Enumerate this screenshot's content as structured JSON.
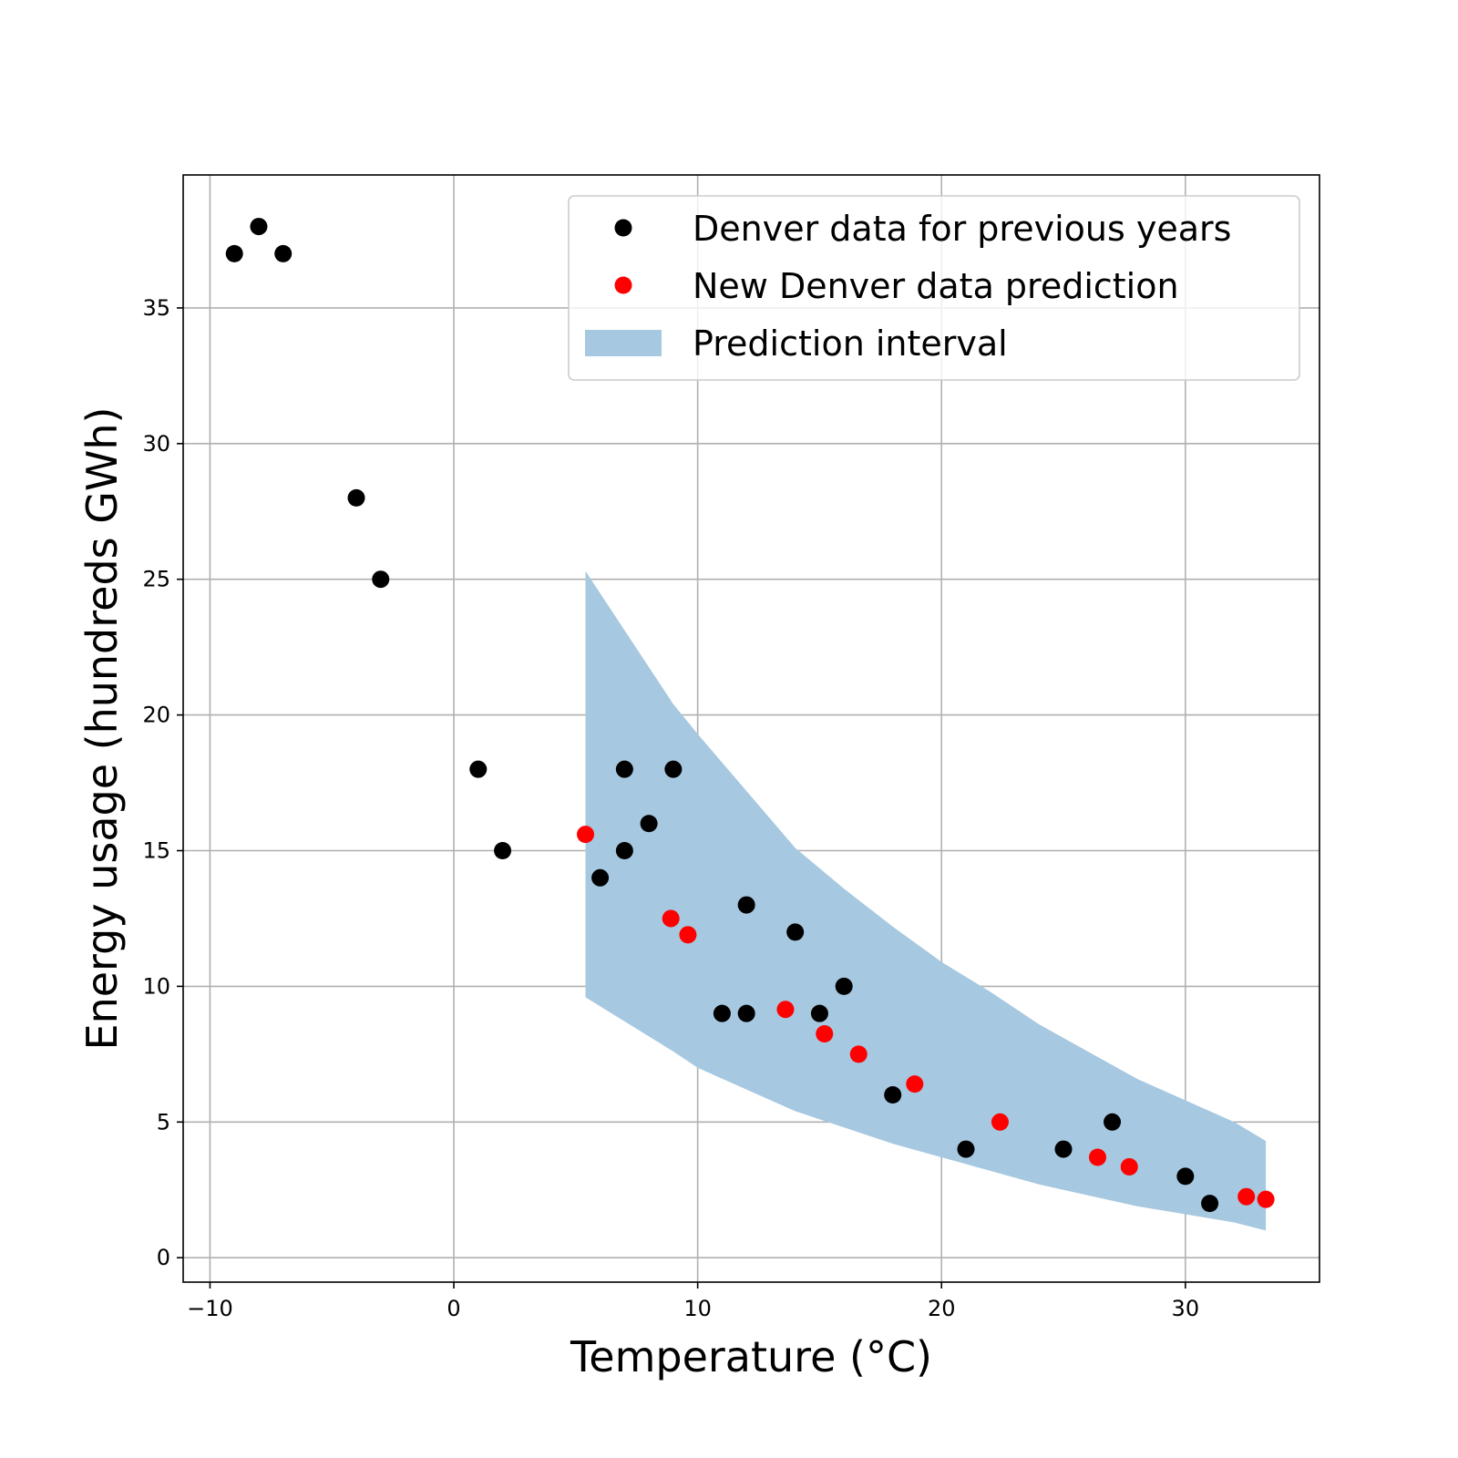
{
  "chart_data": {
    "type": "scatter",
    "title": "",
    "xlabel": "Temperature (°C)",
    "ylabel": "Energy usage (hundreds GWh)",
    "xlim": [
      -11.1,
      35.5
    ],
    "ylim": [
      -0.9,
      39.9
    ],
    "xticks": [
      -10,
      0,
      10,
      20,
      30
    ],
    "xtick_labels": [
      "−10",
      "0",
      "10",
      "20",
      "30"
    ],
    "yticks": [
      0,
      5,
      10,
      15,
      20,
      25,
      30,
      35
    ],
    "ytick_labels": [
      "0",
      "5",
      "10",
      "15",
      "20",
      "25",
      "30",
      "35"
    ],
    "grid": true,
    "legend_position": "top-right",
    "series": [
      {
        "name": "Denver data for previous years",
        "color": "#000000",
        "points": [
          [
            -9,
            37
          ],
          [
            -8,
            38
          ],
          [
            -7,
            37
          ],
          [
            -4,
            28
          ],
          [
            -3,
            25
          ],
          [
            1,
            18
          ],
          [
            2,
            15
          ],
          [
            6,
            14
          ],
          [
            7,
            18
          ],
          [
            7,
            15
          ],
          [
            8,
            16
          ],
          [
            9,
            18
          ],
          [
            11,
            9
          ],
          [
            12,
            13
          ],
          [
            12,
            9
          ],
          [
            14,
            12
          ],
          [
            15,
            9
          ],
          [
            16,
            10
          ],
          [
            18,
            6
          ],
          [
            21,
            4
          ],
          [
            25,
            4
          ],
          [
            27,
            5
          ],
          [
            30,
            3
          ],
          [
            31,
            2
          ]
        ]
      },
      {
        "name": "New Denver data prediction",
        "color": "#ff0000",
        "points": [
          [
            5.4,
            15.6
          ],
          [
            8.9,
            12.5
          ],
          [
            9.6,
            11.9
          ],
          [
            13.6,
            9.15
          ],
          [
            15.2,
            8.25
          ],
          [
            16.6,
            7.5
          ],
          [
            18.9,
            6.4
          ],
          [
            22.4,
            5.0
          ],
          [
            26.4,
            3.7
          ],
          [
            27.7,
            3.35
          ],
          [
            32.5,
            2.25
          ],
          [
            33.3,
            2.15
          ]
        ]
      }
    ],
    "band": {
      "name": "Prediction interval",
      "color": "#a6c8e0",
      "x": [
        5.4,
        9.0,
        10.0,
        12.0,
        14.0,
        16.0,
        18.0,
        20.0,
        22.0,
        24.0,
        26.0,
        28.0,
        30.0,
        32.0,
        33.3
      ],
      "upper": [
        25.3,
        20.4,
        19.3,
        17.2,
        15.1,
        13.6,
        12.2,
        10.9,
        9.8,
        8.6,
        7.6,
        6.6,
        5.8,
        5.0,
        4.3
      ],
      "lower": [
        9.6,
        7.6,
        7.0,
        6.2,
        5.4,
        4.8,
        4.2,
        3.7,
        3.2,
        2.7,
        2.3,
        1.9,
        1.6,
        1.3,
        1.0
      ]
    }
  }
}
